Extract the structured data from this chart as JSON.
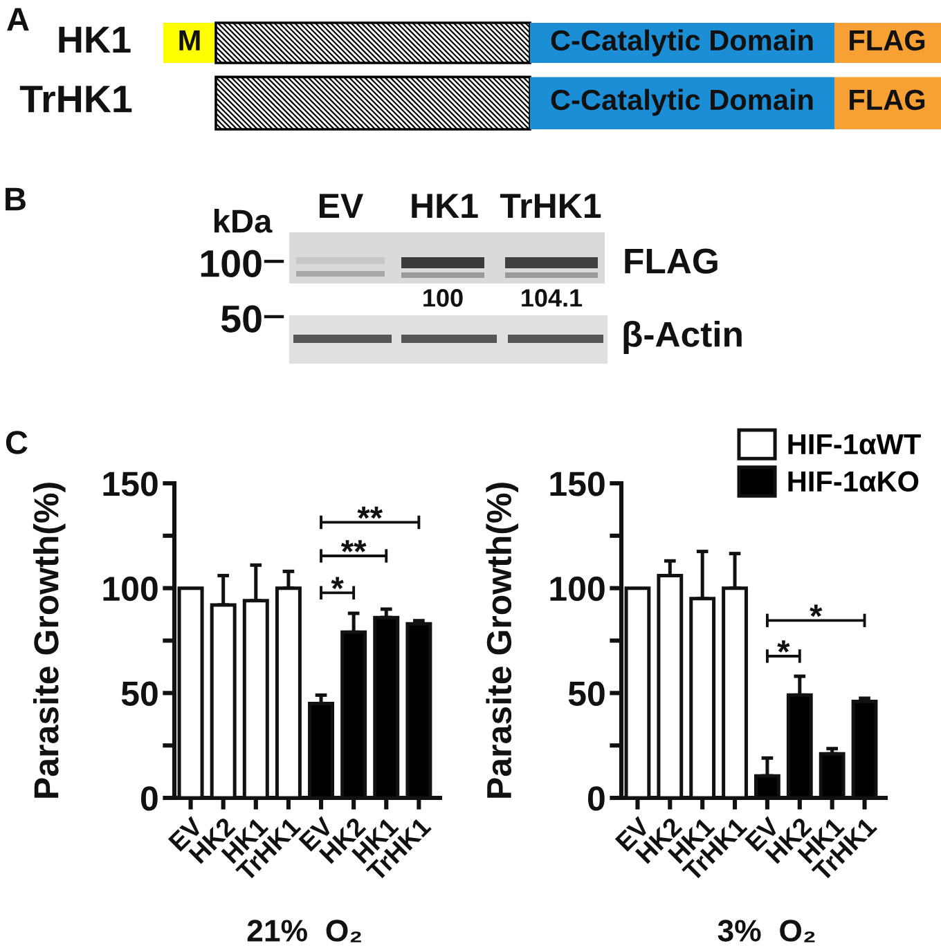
{
  "chart_data": [
    {
      "type": "other",
      "title": "A",
      "annotations": [
        "HK1",
        "M",
        "C-Catalytic Domain",
        "FLAG",
        "TrHK1",
        "C-Catalytic Domain",
        "FLAG"
      ]
    },
    {
      "type": "other",
      "title": "B",
      "annotations": [
        "kDa",
        "EV",
        "HK1",
        "TrHK1",
        "100",
        "FLAG",
        "100",
        "104.1",
        "50",
        "β-Actin"
      ]
    },
    {
      "type": "bar",
      "title": "C",
      "xlabel": "21%  O₂",
      "ylabel": "Parasite Growth(%)",
      "categories": [
        "EV",
        "HK2",
        "HK1",
        "TrHK1",
        "EV",
        "HK2",
        "HK1",
        "TrHK1"
      ],
      "series": [
        {
          "color": "#ffffff",
          "values": [
            100,
            92,
            94,
            100,
            null,
            null,
            null,
            null
          ],
          "errors": [
            null,
            [
              92,
              106
            ],
            [
              94,
              111
            ],
            [
              100,
              108
            ],
            null,
            null,
            null,
            null
          ]
        },
        {
          "color": "#000000",
          "values": [
            null,
            null,
            null,
            null,
            45,
            79,
            86,
            83
          ],
          "errors": [
            null,
            null,
            null,
            null,
            [
              45,
              49
            ],
            [
              79,
              88
            ],
            [
              86,
              90
            ],
            [
              83,
              84.5
            ]
          ]
        }
      ],
      "ylim": [
        0,
        150
      ],
      "yticks": [
        0,
        {
          "value": 25,
          "label": null
        },
        50,
        {
          "value": 75,
          "label": null
        },
        100,
        {
          "value": 125,
          "label": null
        },
        150
      ],
      "annotations": [
        "**",
        "**",
        "*"
      ]
    },
    {
      "type": "bar",
      "xlabel": "3%  O₂",
      "ylabel": "Parasite Growth(%)",
      "categories": [
        "EV",
        "HK2",
        "HK1",
        "TrHK1",
        "EV",
        "HK2",
        "HK1",
        "TrHK1"
      ],
      "series": [
        {
          "name": "HIF-1αWT",
          "color": "#ffffff",
          "values": [
            100,
            106,
            95,
            100,
            null,
            null,
            null,
            null
          ],
          "errors": [
            null,
            [
              106,
              113
            ],
            [
              95,
              117.5
            ],
            [
              100,
              116.5
            ],
            null,
            null,
            null,
            null
          ]
        },
        {
          "name": "HIF-1αKO",
          "color": "#000000",
          "values": [
            null,
            null,
            null,
            null,
            10.5,
            49,
            21,
            46
          ],
          "errors": [
            null,
            null,
            null,
            null,
            [
              10.5,
              19
            ],
            [
              49,
              58
            ],
            [
              21,
              23.5
            ],
            [
              46,
              47.5
            ]
          ]
        }
      ],
      "ylim": [
        0,
        150
      ],
      "yticks": [
        0,
        {
          "value": 25,
          "label": null
        },
        50,
        {
          "value": 75,
          "label": null
        },
        100,
        {
          "value": 125,
          "label": null
        },
        150
      ],
      "annotations": [
        "*",
        "*"
      ],
      "legend": "top right"
    }
  ]
}
